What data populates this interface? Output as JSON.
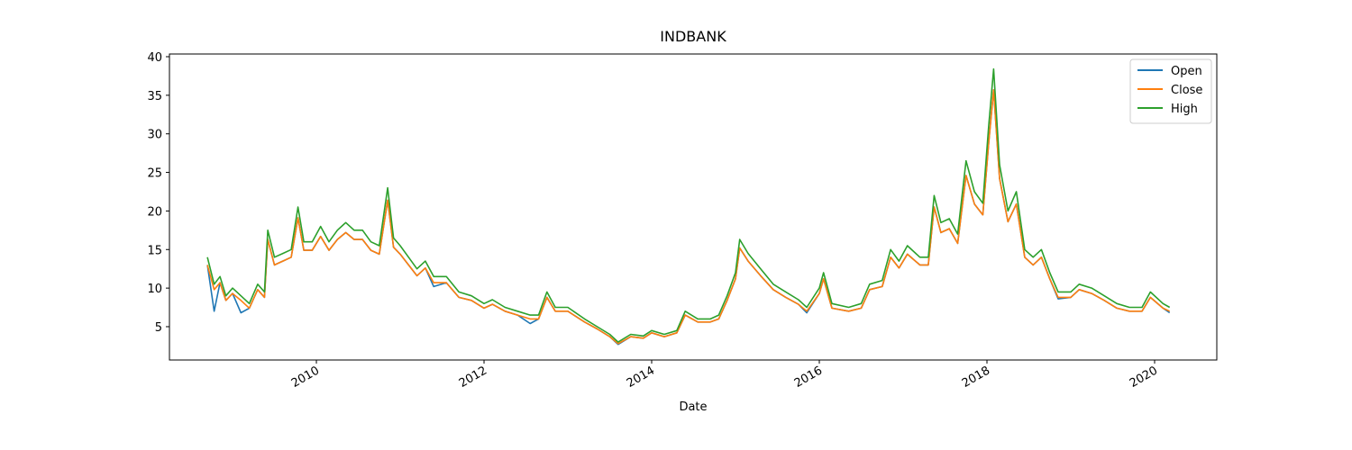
{
  "chart_data": {
    "type": "line",
    "title": "INDBANK",
    "xlabel": "Date",
    "x": [
      2008.7,
      2008.78,
      2008.85,
      2008.92,
      2009.0,
      2009.1,
      2009.2,
      2009.3,
      2009.38,
      2009.42,
      2009.5,
      2009.6,
      2009.7,
      2009.78,
      2009.85,
      2009.95,
      2010.05,
      2010.15,
      2010.25,
      2010.35,
      2010.45,
      2010.55,
      2010.65,
      2010.75,
      2010.85,
      2010.92,
      2011.0,
      2011.1,
      2011.2,
      2011.3,
      2011.4,
      2011.55,
      2011.7,
      2011.85,
      2012.0,
      2012.1,
      2012.25,
      2012.4,
      2012.55,
      2012.65,
      2012.75,
      2012.85,
      2013.0,
      2013.2,
      2013.35,
      2013.5,
      2013.6,
      2013.75,
      2013.9,
      2014.0,
      2014.15,
      2014.3,
      2014.4,
      2014.55,
      2014.7,
      2014.8,
      2014.9,
      2015.0,
      2015.05,
      2015.15,
      2015.3,
      2015.45,
      2015.6,
      2015.75,
      2015.85,
      2016.0,
      2016.05,
      2016.15,
      2016.35,
      2016.5,
      2016.6,
      2016.75,
      2016.85,
      2016.95,
      2017.05,
      2017.2,
      2017.3,
      2017.37,
      2017.45,
      2017.55,
      2017.65,
      2017.75,
      2017.85,
      2017.95,
      2018.02,
      2018.08,
      2018.15,
      2018.25,
      2018.35,
      2018.45,
      2018.55,
      2018.65,
      2018.75,
      2018.85,
      2019.0,
      2019.1,
      2019.25,
      2019.4,
      2019.55,
      2019.7,
      2019.85,
      2019.95,
      2020.1,
      2020.18
    ],
    "series": [
      {
        "name": "Open",
        "color": "#1f77b4",
        "values": [
          13.0,
          7.0,
          10.7,
          8.4,
          9.3,
          6.8,
          7.4,
          9.8,
          8.8,
          16.3,
          13.0,
          13.5,
          14.0,
          19.1,
          14.9,
          14.9,
          16.7,
          14.9,
          16.3,
          17.2,
          16.3,
          16.3,
          14.9,
          14.4,
          21.4,
          15.3,
          14.4,
          13.0,
          11.6,
          12.6,
          10.2,
          10.7,
          8.8,
          8.4,
          7.4,
          7.9,
          7.0,
          6.5,
          5.4,
          6.0,
          8.8,
          7.0,
          7.0,
          5.6,
          4.7,
          3.7,
          2.7,
          3.7,
          3.5,
          4.2,
          3.7,
          4.2,
          6.5,
          5.6,
          5.6,
          6.0,
          8.4,
          11.2,
          15.2,
          13.5,
          11.6,
          9.8,
          8.8,
          7.9,
          6.8,
          9.3,
          11.2,
          7.4,
          7.0,
          7.4,
          9.8,
          10.2,
          14.0,
          12.6,
          14.4,
          13.0,
          13.0,
          20.5,
          17.2,
          17.7,
          15.8,
          24.6,
          20.9,
          19.5,
          28.8,
          35.7,
          24.2,
          18.6,
          20.9,
          14.0,
          13.0,
          14.0,
          11.2,
          8.6,
          8.8,
          9.8,
          9.3,
          8.4,
          7.4,
          7.0,
          7.0,
          8.8,
          7.4,
          6.8
        ]
      },
      {
        "name": "Close",
        "color": "#ff7f0e",
        "values": [
          13.0,
          9.8,
          10.7,
          8.4,
          9.3,
          8.4,
          7.4,
          9.8,
          8.8,
          16.3,
          13.0,
          13.5,
          14.0,
          19.1,
          14.9,
          14.9,
          16.7,
          14.9,
          16.3,
          17.2,
          16.3,
          16.3,
          14.9,
          14.4,
          21.4,
          15.3,
          14.4,
          13.0,
          11.6,
          12.6,
          10.7,
          10.7,
          8.8,
          8.4,
          7.4,
          7.9,
          7.0,
          6.5,
          6.0,
          6.0,
          8.8,
          7.0,
          7.0,
          5.6,
          4.7,
          3.7,
          2.8,
          3.7,
          3.5,
          4.2,
          3.7,
          4.2,
          6.5,
          5.6,
          5.6,
          6.0,
          8.4,
          11.2,
          15.2,
          13.5,
          11.6,
          9.8,
          8.8,
          7.9,
          7.0,
          9.3,
          11.2,
          7.4,
          7.0,
          7.4,
          9.8,
          10.2,
          14.0,
          12.6,
          14.4,
          13.0,
          13.0,
          20.5,
          17.2,
          17.7,
          15.8,
          24.6,
          20.9,
          19.5,
          28.8,
          35.7,
          24.2,
          18.6,
          20.9,
          14.0,
          13.0,
          14.0,
          11.2,
          8.8,
          8.8,
          9.8,
          9.3,
          8.4,
          7.4,
          7.0,
          7.0,
          8.8,
          7.4,
          7.0
        ]
      },
      {
        "name": "High",
        "color": "#2ca02c",
        "values": [
          14.0,
          10.5,
          11.5,
          9.0,
          10.0,
          9.0,
          8.0,
          10.5,
          9.5,
          17.5,
          14.0,
          14.5,
          15.0,
          20.5,
          16.0,
          16.0,
          18.0,
          16.0,
          17.5,
          18.5,
          17.5,
          17.5,
          16.0,
          15.5,
          23.0,
          16.5,
          15.5,
          14.0,
          12.5,
          13.5,
          11.5,
          11.5,
          9.5,
          9.0,
          8.0,
          8.5,
          7.5,
          7.0,
          6.5,
          6.5,
          9.5,
          7.5,
          7.5,
          6.0,
          5.0,
          4.0,
          3.0,
          4.0,
          3.8,
          4.5,
          4.0,
          4.5,
          7.0,
          6.0,
          6.0,
          6.5,
          9.0,
          12.0,
          16.3,
          14.5,
          12.5,
          10.5,
          9.5,
          8.5,
          7.5,
          10.0,
          12.0,
          8.0,
          7.5,
          8.0,
          10.5,
          11.0,
          15.0,
          13.5,
          15.5,
          14.0,
          14.0,
          22.0,
          18.5,
          19.0,
          17.0,
          26.5,
          22.5,
          21.0,
          31.0,
          38.4,
          26.0,
          20.0,
          22.5,
          15.0,
          14.0,
          15.0,
          12.0,
          9.5,
          9.5,
          10.5,
          10.0,
          9.0,
          8.0,
          7.5,
          7.5,
          9.5,
          8.0,
          7.5
        ]
      }
    ],
    "xlim": [
      2008.247,
      2020.742
    ],
    "xticks": [
      2010,
      2012,
      2014,
      2016,
      2018,
      2020
    ],
    "ylim": [
      0.68,
      40.35
    ],
    "yticks": [
      5,
      10,
      15,
      20,
      25,
      30,
      35,
      40
    ],
    "legend": "upper right"
  }
}
